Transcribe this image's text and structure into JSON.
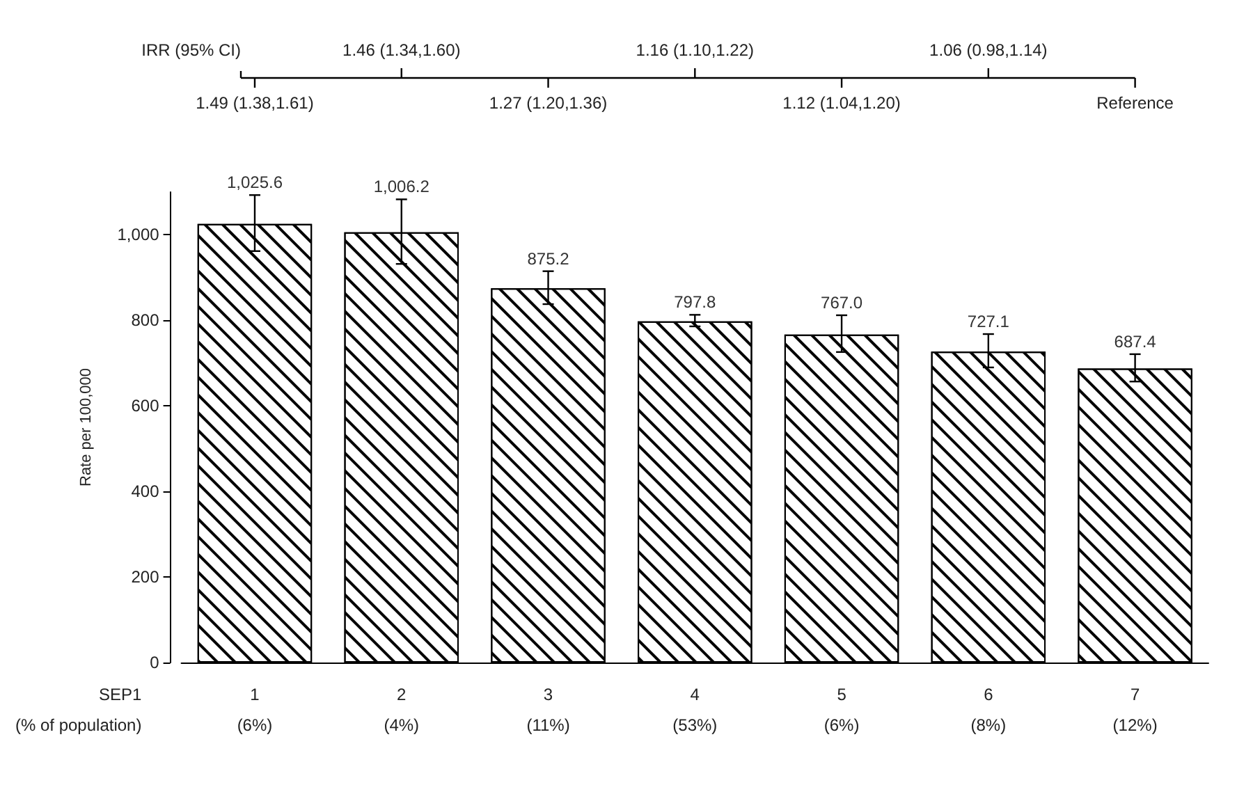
{
  "chart_data": {
    "type": "bar",
    "ylabel": "Rate per 100,000",
    "xlabel": "SEP1\n(% of population)",
    "x2label": "IRR (95% CI)",
    "categories": [
      "1\n(6%)",
      "2\n(4%)",
      "3\n(11%)",
      "4\n(53%)",
      "5\n(6%)",
      "6\n(8%)",
      "7\n(12%)"
    ],
    "values": [
      1025.6,
      1006.2,
      875.2,
      797.8,
      767.0,
      727.1,
      687.4
    ],
    "value_labels": [
      "1,025.6",
      "1,006.2",
      "875.2",
      "797.8",
      "767.0",
      "727.1",
      "687.4"
    ],
    "errors": [
      [
        962,
        1093
      ],
      [
        932,
        1083
      ],
      [
        838,
        915
      ],
      [
        786,
        813
      ],
      [
        726,
        812
      ],
      [
        690,
        768
      ],
      [
        657,
        721
      ]
    ],
    "color": "#ffffff",
    "ylim": [
      0,
      1100
    ],
    "yticks": [
      0,
      200,
      400,
      600,
      800,
      {
        "value": 1000,
        "label": "1,000"
      }
    ],
    "grid": false,
    "legend": false,
    "annotations": [
      {
        "text": "1.49 (1.38,1.61)",
        "x": "1\n(6%)"
      },
      {
        "text": "1.46 (1.34,1.60)",
        "x": "2\n(4%)"
      },
      {
        "text": "1.27 (1.20,1.36)",
        "x": "3\n(11%)"
      },
      {
        "text": "1.16 (1.10,1.22)",
        "x": "4\n(53%)"
      },
      {
        "text": "1.12 (1.04,1.20)",
        "x": "5\n(6%)"
      },
      {
        "text": "1.06 (0.98,1.14)",
        "x": "6\n(8%)"
      },
      {
        "text": "Reference",
        "x": "7\n(12%)"
      }
    ]
  }
}
